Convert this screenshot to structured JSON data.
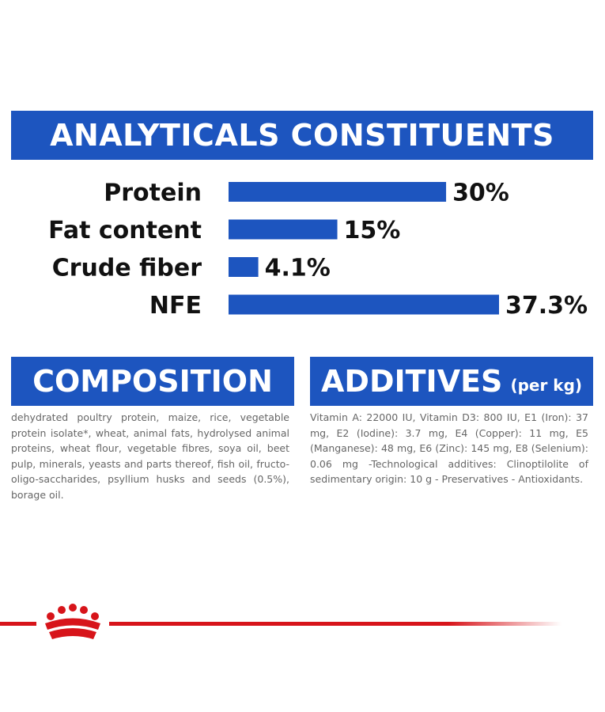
{
  "analytics": {
    "title": "ANALYTICALS CONSTITUENTS"
  },
  "chart_data": {
    "type": "bar",
    "orientation": "horizontal",
    "categories": [
      "Protein",
      "Fat content",
      "Crude fiber",
      "NFE"
    ],
    "values": [
      30,
      15,
      4.1,
      37.3
    ],
    "value_labels": [
      "30%",
      "15%",
      "4.1%",
      "37.3%"
    ],
    "unit": "%",
    "xlim": [
      0,
      37.3
    ],
    "grid": false,
    "legend": "none",
    "color": "#1d55bf"
  },
  "composition": {
    "title": "COMPOSITION",
    "text": "dehydrated poultry protein, maize, rice, vegetable protein isolate*, wheat, animal fats, hydrolysed animal proteins, wheat flour, vegetable fibres, soya oil, beet pulp, minerals, yeasts and parts thereof, fish oil, fructo-oligo-saccharides, psyllium husks and seeds (0.5%), borage oil."
  },
  "additives": {
    "title": "ADDITIVES",
    "unit": "(per kg)",
    "text": "Vitamin A: 22000 IU, Vitamin D3: 800 IU, E1 (Iron): 37 mg, E2 (Iodine): 3.7 mg, E4 (Copper): 11 mg, E5 (Manganese): 48 mg, E6 (Zinc): 145 mg, E8 (Selenium): 0.06 mg -Technological additives: Clinoptilolite of sedimentary origin: 10 g - Preservatives - Antioxidants."
  },
  "brand": {
    "logo_icon": "crown-icon",
    "accent_color": "#d7141a"
  }
}
